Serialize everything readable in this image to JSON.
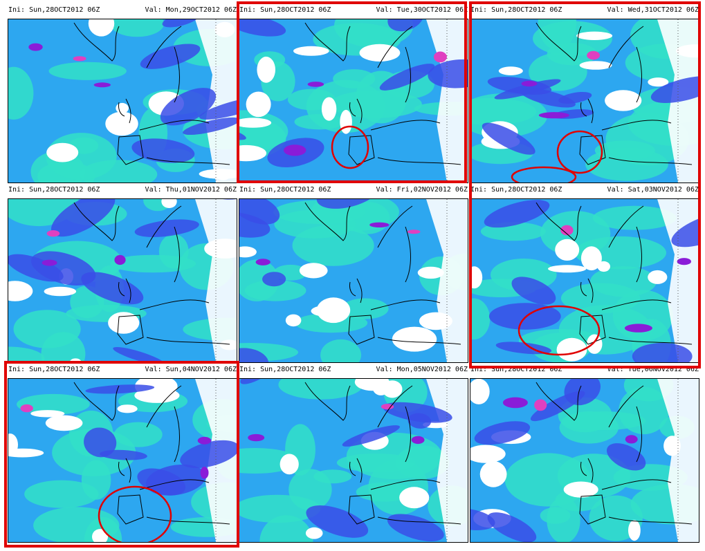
{
  "panels": [
    {
      "ini": "Ini: Sun,28OCT2012 06Z",
      "val": "Val: Mon,29OCT2012 06Z",
      "highlighted": false,
      "circles": 0
    },
    {
      "ini": "Ini: Sun,28OCT2012 06Z",
      "val": "Val: Tue,30OCT2012 06Z",
      "highlighted": true,
      "circles": 1
    },
    {
      "ini": "Ini: Sun,28OCT2012 06Z",
      "val": "Val: Wed,31OCT2012 06Z",
      "highlighted": true,
      "circles": 2
    },
    {
      "ini": "Ini: Sun,28OCT2012 06Z",
      "val": "Val: Thu,01NOV2012 06Z",
      "highlighted": false,
      "circles": 0
    },
    {
      "ini": "Ini: Sun,28OCT2012 06Z",
      "val": "Val: Fri,02NOV2012 06Z",
      "highlighted": false,
      "circles": 0
    },
    {
      "ini": "Ini: Sun,28OCT2012 06Z",
      "val": "Val: Sat,03NOV2012 06Z",
      "highlighted": true,
      "circles": 1
    },
    {
      "ini": "Ini: Sun,28OCT2012 06Z",
      "val": "Val: Sun,04NOV2012 06Z",
      "highlighted": true,
      "circles": 1
    },
    {
      "ini": "Ini: Sun,28OCT2012 06Z",
      "val": "Val: Mon,05NOV2012 06Z",
      "highlighted": false,
      "circles": 0
    },
    {
      "ini": "Ini: Sun,28OCT2012 06Z",
      "val": "Val: Tue,06NOV2012 06Z",
      "highlighted": false,
      "circles": 0
    }
  ],
  "colors": {
    "highlight": "#e00000",
    "field_low": "#33e0c8",
    "field_mid": "#2da7f0",
    "field_high": "#3a4ee8",
    "field_peak": "#8a1cd8",
    "field_extreme": "#e040c0",
    "land_clear": "#ffffff",
    "coast": "#000000"
  }
}
